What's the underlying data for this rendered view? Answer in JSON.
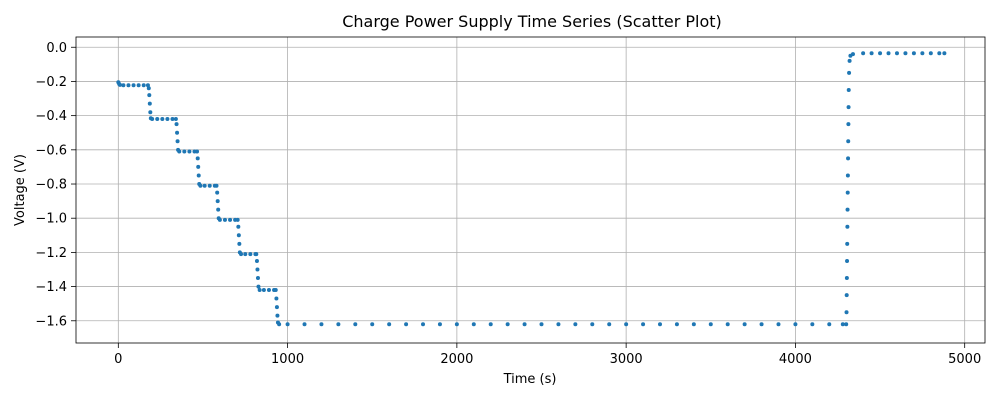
{
  "chart_data": {
    "type": "scatter",
    "title": "Charge Power Supply Time Series (Scatter Plot)",
    "xlabel": "Time (s)",
    "ylabel": "Voltage (V)",
    "xlim": [
      -250,
      5120
    ],
    "ylim": [
      -1.73,
      0.06
    ],
    "x_ticks": [
      0,
      1000,
      2000,
      3000,
      4000,
      5000
    ],
    "y_ticks": [
      0.0,
      -0.2,
      -0.4,
      -0.6,
      -0.8,
      -1.0,
      -1.2,
      -1.4,
      -1.6
    ],
    "x_tick_labels": [
      "0",
      "1000",
      "2000",
      "3000",
      "4000",
      "5000"
    ],
    "y_tick_labels": [
      "0.0",
      "−0.2",
      "−0.4",
      "−0.6",
      "−0.8",
      "−1.0",
      "−1.2",
      "−1.4",
      "−1.6"
    ],
    "grid": true,
    "marker_color": "#1f77b4",
    "series": [
      {
        "points": [
          [
            0,
            -0.205
          ],
          [
            5,
            -0.215
          ],
          [
            10,
            -0.22
          ],
          [
            30,
            -0.222
          ],
          [
            60,
            -0.222
          ],
          [
            90,
            -0.222
          ],
          [
            120,
            -0.222
          ],
          [
            150,
            -0.222
          ],
          [
            175,
            -0.222
          ],
          [
            180,
            -0.24
          ],
          [
            183,
            -0.28
          ],
          [
            186,
            -0.33
          ],
          [
            189,
            -0.38
          ],
          [
            192,
            -0.415
          ],
          [
            200,
            -0.42
          ],
          [
            230,
            -0.42
          ],
          [
            260,
            -0.42
          ],
          [
            290,
            -0.42
          ],
          [
            320,
            -0.42
          ],
          [
            340,
            -0.42
          ],
          [
            344,
            -0.45
          ],
          [
            347,
            -0.5
          ],
          [
            350,
            -0.55
          ],
          [
            353,
            -0.6
          ],
          [
            360,
            -0.61
          ],
          [
            390,
            -0.61
          ],
          [
            420,
            -0.61
          ],
          [
            450,
            -0.61
          ],
          [
            465,
            -0.61
          ],
          [
            469,
            -0.65
          ],
          [
            472,
            -0.7
          ],
          [
            475,
            -0.75
          ],
          [
            478,
            -0.8
          ],
          [
            485,
            -0.81
          ],
          [
            510,
            -0.81
          ],
          [
            540,
            -0.81
          ],
          [
            570,
            -0.81
          ],
          [
            580,
            -0.81
          ],
          [
            584,
            -0.85
          ],
          [
            587,
            -0.9
          ],
          [
            590,
            -0.95
          ],
          [
            593,
            -1.0
          ],
          [
            600,
            -1.01
          ],
          [
            630,
            -1.01
          ],
          [
            660,
            -1.01
          ],
          [
            690,
            -1.01
          ],
          [
            705,
            -1.01
          ],
          [
            709,
            -1.05
          ],
          [
            712,
            -1.1
          ],
          [
            715,
            -1.15
          ],
          [
            718,
            -1.2
          ],
          [
            725,
            -1.21
          ],
          [
            750,
            -1.21
          ],
          [
            780,
            -1.21
          ],
          [
            810,
            -1.21
          ],
          [
            815,
            -1.21
          ],
          [
            819,
            -1.25
          ],
          [
            822,
            -1.3
          ],
          [
            825,
            -1.35
          ],
          [
            828,
            -1.4
          ],
          [
            835,
            -1.42
          ],
          [
            860,
            -1.42
          ],
          [
            890,
            -1.42
          ],
          [
            920,
            -1.42
          ],
          [
            930,
            -1.42
          ],
          [
            934,
            -1.47
          ],
          [
            937,
            -1.52
          ],
          [
            940,
            -1.57
          ],
          [
            943,
            -1.61
          ],
          [
            950,
            -1.62
          ],
          [
            1000,
            -1.62
          ],
          [
            1100,
            -1.62
          ],
          [
            1200,
            -1.62
          ],
          [
            1300,
            -1.62
          ],
          [
            1400,
            -1.62
          ],
          [
            1500,
            -1.62
          ],
          [
            1600,
            -1.62
          ],
          [
            1700,
            -1.62
          ],
          [
            1800,
            -1.62
          ],
          [
            1900,
            -1.62
          ],
          [
            2000,
            -1.62
          ],
          [
            2100,
            -1.62
          ],
          [
            2200,
            -1.62
          ],
          [
            2300,
            -1.62
          ],
          [
            2400,
            -1.62
          ],
          [
            2500,
            -1.62
          ],
          [
            2600,
            -1.62
          ],
          [
            2700,
            -1.62
          ],
          [
            2800,
            -1.62
          ],
          [
            2900,
            -1.62
          ],
          [
            3000,
            -1.62
          ],
          [
            3100,
            -1.62
          ],
          [
            3200,
            -1.62
          ],
          [
            3300,
            -1.62
          ],
          [
            3400,
            -1.62
          ],
          [
            3500,
            -1.62
          ],
          [
            3600,
            -1.62
          ],
          [
            3700,
            -1.62
          ],
          [
            3800,
            -1.62
          ],
          [
            3900,
            -1.62
          ],
          [
            4000,
            -1.62
          ],
          [
            4100,
            -1.62
          ],
          [
            4200,
            -1.62
          ],
          [
            4280,
            -1.62
          ],
          [
            4300,
            -1.62
          ],
          [
            4302,
            -1.55
          ],
          [
            4303,
            -1.45
          ],
          [
            4304,
            -1.35
          ],
          [
            4305,
            -1.25
          ],
          [
            4306,
            -1.15
          ],
          [
            4307,
            -1.05
          ],
          [
            4308,
            -0.95
          ],
          [
            4309,
            -0.85
          ],
          [
            4310,
            -0.75
          ],
          [
            4311,
            -0.65
          ],
          [
            4312,
            -0.55
          ],
          [
            4313,
            -0.45
          ],
          [
            4314,
            -0.35
          ],
          [
            4315,
            -0.25
          ],
          [
            4317,
            -0.15
          ],
          [
            4320,
            -0.08
          ],
          [
            4325,
            -0.05
          ],
          [
            4340,
            -0.04
          ],
          [
            4400,
            -0.035
          ],
          [
            4450,
            -0.035
          ],
          [
            4500,
            -0.035
          ],
          [
            4550,
            -0.035
          ],
          [
            4600,
            -0.035
          ],
          [
            4650,
            -0.035
          ],
          [
            4700,
            -0.035
          ],
          [
            4750,
            -0.035
          ],
          [
            4800,
            -0.035
          ],
          [
            4850,
            -0.035
          ],
          [
            4880,
            -0.035
          ]
        ]
      }
    ]
  }
}
